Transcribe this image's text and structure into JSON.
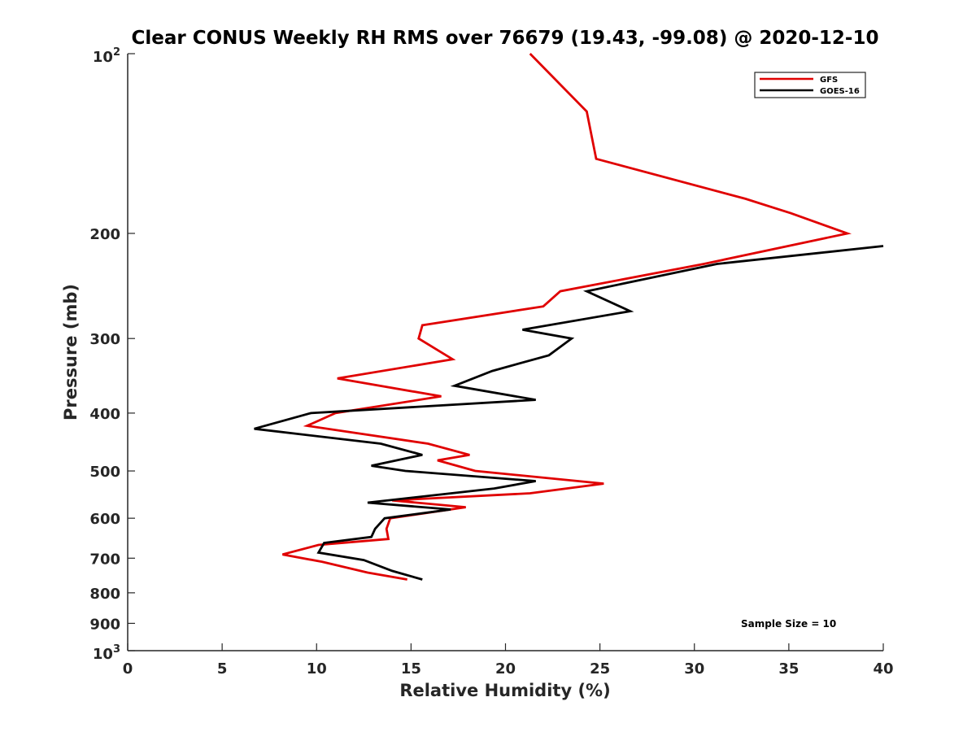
{
  "chart_data": {
    "type": "line",
    "title": "Clear CONUS Weekly RH RMS over 76679 (19.43, -99.08) @ 2020-12-10",
    "xlabel": "Relative Humidity (%)",
    "ylabel": "Pressure (mb)",
    "xlim": [
      0,
      40
    ],
    "ylim": [
      100,
      1000
    ],
    "y_scale": "log",
    "y_reversed": true,
    "x_ticks": [
      0,
      5,
      10,
      15,
      20,
      25,
      30,
      35,
      40
    ],
    "x_tick_labels": [
      "0",
      "5",
      "10",
      "15",
      "20",
      "25",
      "30",
      "35",
      "40"
    ],
    "y_ticks": [
      200,
      300,
      400,
      500,
      600,
      700,
      800,
      900
    ],
    "y_tick_labels": [
      "200",
      "300",
      "400",
      "500",
      "600",
      "700",
      "800",
      "900"
    ],
    "y_tick_exp_top": {
      "value": 100,
      "base": "10",
      "exp": "2"
    },
    "y_tick_exp_bottom": {
      "value": 1000,
      "base": "10",
      "exp": "3"
    },
    "grid": false,
    "legend_position": "top-right",
    "annotation": "Sample Size = 10",
    "series": [
      {
        "name": "GFS",
        "color": "#e00000",
        "points": [
          [
            21.3,
            100
          ],
          [
            24.3,
            125
          ],
          [
            24.8,
            150
          ],
          [
            32.7,
            175
          ],
          [
            35.1,
            185
          ],
          [
            38.1,
            200
          ],
          [
            30.5,
            225
          ],
          [
            22.9,
            250
          ],
          [
            22.0,
            265
          ],
          [
            15.6,
            285
          ],
          [
            15.4,
            300
          ],
          [
            17.2,
            325
          ],
          [
            11.1,
            350
          ],
          [
            16.6,
            375
          ],
          [
            11.0,
            400
          ],
          [
            9.5,
            420
          ],
          [
            15.9,
            450
          ],
          [
            18.1,
            470
          ],
          [
            16.4,
            480
          ],
          [
            18.4,
            500
          ],
          [
            25.2,
            525
          ],
          [
            21.3,
            545
          ],
          [
            14.0,
            560
          ],
          [
            17.9,
            575
          ],
          [
            13.9,
            600
          ],
          [
            13.7,
            625
          ],
          [
            13.8,
            650
          ],
          [
            10.1,
            665
          ],
          [
            8.2,
            690
          ],
          [
            10.3,
            710
          ],
          [
            12.7,
            740
          ],
          [
            14.8,
            760
          ]
        ]
      },
      {
        "name": "GOES-16",
        "color": "#000000",
        "points": [
          [
            40.0,
            210
          ],
          [
            31.2,
            225
          ],
          [
            24.3,
            250
          ],
          [
            26.6,
            270
          ],
          [
            20.9,
            290
          ],
          [
            23.5,
            300
          ],
          [
            22.3,
            320
          ],
          [
            19.3,
            340
          ],
          [
            17.3,
            360
          ],
          [
            21.6,
            380
          ],
          [
            9.7,
            400
          ],
          [
            6.7,
            425
          ],
          [
            13.4,
            450
          ],
          [
            15.6,
            470
          ],
          [
            12.9,
            490
          ],
          [
            14.7,
            500
          ],
          [
            21.6,
            520
          ],
          [
            19.4,
            535
          ],
          [
            12.7,
            565
          ],
          [
            17.1,
            580
          ],
          [
            13.6,
            600
          ],
          [
            13.1,
            625
          ],
          [
            12.9,
            645
          ],
          [
            10.4,
            660
          ],
          [
            10.1,
            685
          ],
          [
            12.5,
            705
          ],
          [
            14.0,
            735
          ],
          [
            15.6,
            760
          ]
        ]
      }
    ]
  }
}
